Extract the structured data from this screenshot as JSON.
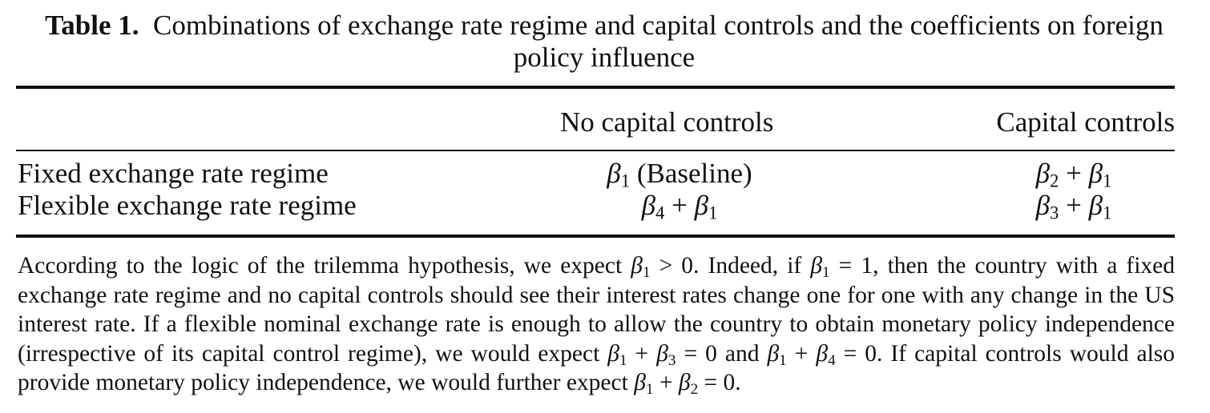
{
  "caption": {
    "label": "Table 1.",
    "text": "Combinations of exchange rate regime and capital controls and the coefficients on foreign policy influence"
  },
  "table": {
    "columns": [
      "",
      "No capital controls",
      "Capital controls"
    ],
    "rows": [
      {
        "label": "Fixed exchange rate regime",
        "no_capital_controls": "β1 (Baseline)",
        "capital_controls": "β2 + β1"
      },
      {
        "label": "Flexible exchange rate regime",
        "no_capital_controls": "β4 + β1",
        "capital_controls": "β3 + β1"
      }
    ]
  },
  "note": "According to the logic of the trilemma hypothesis, we expect β1 > 0. Indeed, if β1 = 1, then the country with a fixed exchange rate regime and no capital controls should see their interest rates change one for one with any change in the US interest rate. If a flexible nominal exchange rate is enough to allow the country to obtain monetary policy independence (irrespective of its capital control regime), we would expect β1 + β3 = 0 and β1 + β4 = 0. If capital controls would also provide monetary policy independence, we would further expect β1 + β2 = 0."
}
